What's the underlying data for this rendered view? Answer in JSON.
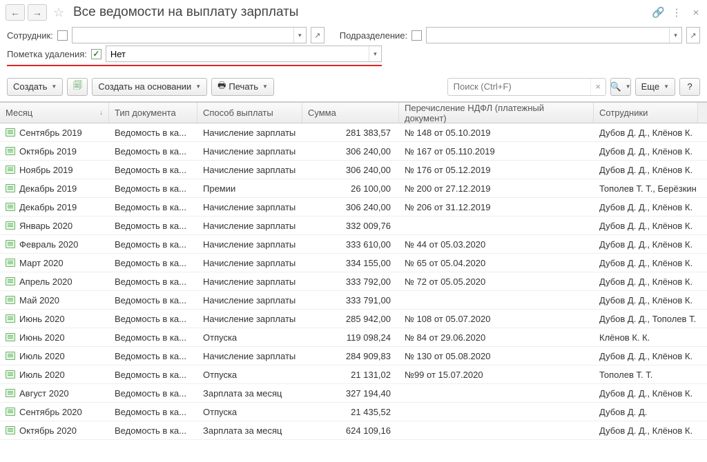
{
  "header": {
    "title": "Все ведомости на выплату зарплаты"
  },
  "filters": {
    "employee_label": "Сотрудник:",
    "employee_value": "",
    "department_label": "Подразделение:",
    "department_value": "",
    "delete_mark_label": "Пометка удаления:",
    "delete_mark_value": "Нет",
    "delete_mark_checked": "✓"
  },
  "toolbar": {
    "create": "Создать",
    "create_based": "Создать на основании",
    "print": "Печать",
    "search_placeholder": "Поиск (Ctrl+F)",
    "more": "Еще",
    "help": "?"
  },
  "columns": {
    "month": "Месяц",
    "doc_type": "Тип документа",
    "method": "Способ выплаты",
    "amount": "Сумма",
    "ndfl": "Перечисление НДФЛ (платежный документ)",
    "employees": "Сотрудники"
  },
  "colors": {
    "redline": "#d22",
    "header_text": "#444",
    "row_border": "#eee",
    "icon_green": "#2a8c2a"
  },
  "rows": [
    {
      "month": "Сентябрь 2019",
      "type": "Ведомость в ка...",
      "method": "Начисление зарплаты",
      "amount": "281 383,57",
      "ndfl": "№ 148 от 05.10.2019",
      "emp": "Дубов Д. Д., Клёнов К."
    },
    {
      "month": "Октябрь 2019",
      "type": "Ведомость в ка...",
      "method": "Начисление зарплаты",
      "amount": "306 240,00",
      "ndfl": "№ 167 от 05.110.2019",
      "emp": "Дубов Д. Д., Клёнов К."
    },
    {
      "month": "Ноябрь 2019",
      "type": "Ведомость в ка...",
      "method": "Начисление зарплаты",
      "amount": "306 240,00",
      "ndfl": "№ 176 от 05.12.2019",
      "emp": "Дубов Д. Д., Клёнов К."
    },
    {
      "month": "Декабрь 2019",
      "type": "Ведомость в ка...",
      "method": "Премии",
      "amount": "26 100,00",
      "ndfl": "№ 200 от 27.12.2019",
      "emp": "Тополев Т. Т., Берёзкин"
    },
    {
      "month": "Декабрь 2019",
      "type": "Ведомость в ка...",
      "method": "Начисление зарплаты",
      "amount": "306 240,00",
      "ndfl": "№ 206 от 31.12.2019",
      "emp": "Дубов Д. Д., Клёнов К."
    },
    {
      "month": "Январь 2020",
      "type": "Ведомость в ка...",
      "method": "Начисление зарплаты",
      "amount": "332 009,76",
      "ndfl": "",
      "emp": "Дубов Д. Д., Клёнов К."
    },
    {
      "month": "Февраль 2020",
      "type": "Ведомость в ка...",
      "method": "Начисление зарплаты",
      "amount": "333 610,00",
      "ndfl": "№ 44 от 05.03.2020",
      "emp": "Дубов Д. Д., Клёнов К."
    },
    {
      "month": "Март 2020",
      "type": "Ведомость в ка...",
      "method": "Начисление зарплаты",
      "amount": "334 155,00",
      "ndfl": "№ 65 от 05.04.2020",
      "emp": "Дубов Д. Д., Клёнов К."
    },
    {
      "month": "Апрель 2020",
      "type": "Ведомость в ка...",
      "method": "Начисление зарплаты",
      "amount": "333 792,00",
      "ndfl": "№ 72 от 05.05.2020",
      "emp": "Дубов Д. Д., Клёнов К."
    },
    {
      "month": "Май 2020",
      "type": "Ведомость в ка...",
      "method": "Начисление зарплаты",
      "amount": "333 791,00",
      "ndfl": "",
      "emp": "Дубов Д. Д., Клёнов К."
    },
    {
      "month": "Июнь 2020",
      "type": "Ведомость в ка...",
      "method": "Начисление зарплаты",
      "amount": "285 942,00",
      "ndfl": "№ 108 от 05.07.2020",
      "emp": "Дубов Д. Д., Тополев Т."
    },
    {
      "month": "Июнь 2020",
      "type": "Ведомость в ка...",
      "method": "Отпуска",
      "amount": "119 098,24",
      "ndfl": "№ 84 от 29.06.2020",
      "emp": "Клёнов К. К."
    },
    {
      "month": "Июль 2020",
      "type": "Ведомость в ка...",
      "method": "Начисление зарплаты",
      "amount": "284 909,83",
      "ndfl": "№ 130 от 05.08.2020",
      "emp": "Дубов Д. Д., Клёнов К."
    },
    {
      "month": "Июль 2020",
      "type": "Ведомость в ка...",
      "method": "Отпуска",
      "amount": "21 131,02",
      "ndfl": "№99 от 15.07.2020",
      "emp": "Тополев Т. Т."
    },
    {
      "month": "Август 2020",
      "type": "Ведомость в ка...",
      "method": "Зарплата за месяц",
      "amount": "327 194,40",
      "ndfl": "",
      "emp": "Дубов Д. Д., Клёнов К."
    },
    {
      "month": "Сентябрь 2020",
      "type": "Ведомость в ка...",
      "method": "Отпуска",
      "amount": "21 435,52",
      "ndfl": "",
      "emp": "Дубов Д. Д."
    },
    {
      "month": "Октябрь 2020",
      "type": "Ведомость в ка...",
      "method": "Зарплата за месяц",
      "amount": "624 109,16",
      "ndfl": "",
      "emp": "Дубов Д. Д., Клёнов К."
    }
  ]
}
